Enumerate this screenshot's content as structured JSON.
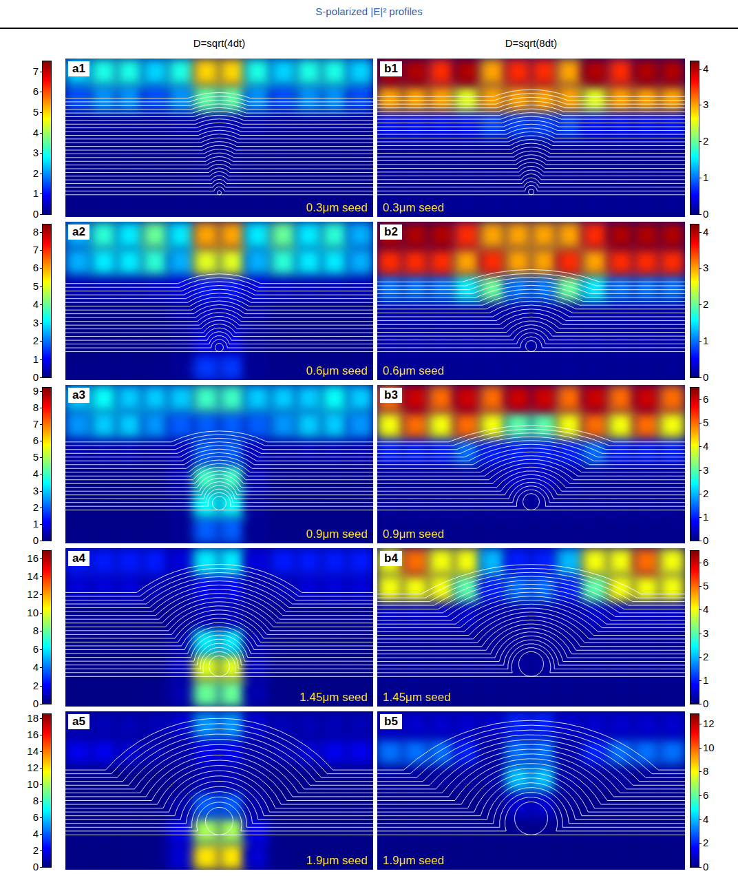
{
  "title": "S-polarized |E|² profiles",
  "column_titles": [
    "D=sqrt(4dt)",
    "D=sqrt(8dt)"
  ],
  "chart_data": [
    {
      "type": "heatmap",
      "panel": "a1",
      "annotation": "0.3μm seed",
      "tick_labels": false,
      "colorbar_range": [
        0,
        7.5
      ],
      "colorbar_ticks": [
        0,
        1,
        2,
        3,
        4,
        5,
        6,
        7
      ],
      "cells": [
        [
          2.5,
          3,
          3,
          2.5,
          3,
          5,
          5,
          3,
          2.5,
          3,
          3,
          2.5
        ],
        [
          1.5,
          2,
          2,
          1.5,
          2,
          3.5,
          3.5,
          2,
          1.5,
          2,
          2,
          1.5
        ],
        [
          0.2,
          0.2,
          0.2,
          0.2,
          0.3,
          0.4,
          0.4,
          0.3,
          0.2,
          0.2,
          0.2,
          0.2
        ],
        [
          0.1,
          0.1,
          0.1,
          0.1,
          0.1,
          0.2,
          0.2,
          0.1,
          0.1,
          0.1,
          0.1,
          0.1
        ],
        [
          0.1,
          0.1,
          0.1,
          0.1,
          0.1,
          0.2,
          0.2,
          0.1,
          0.1,
          0.1,
          0.1,
          0.1
        ],
        [
          0.1,
          0.1,
          0.1,
          0.1,
          0.1,
          0.1,
          0.1,
          0.1,
          0.1,
          0.1,
          0.1,
          0.1
        ]
      ]
    },
    {
      "type": "heatmap",
      "panel": "a2",
      "annotation": "0.6μm seed",
      "tick_labels": false,
      "colorbar_range": [
        0,
        8.4
      ],
      "colorbar_ticks": [
        0,
        1,
        2,
        3,
        4,
        5,
        6,
        7,
        8
      ],
      "cells": [
        [
          2.5,
          3.5,
          3,
          4,
          3,
          6,
          6,
          3,
          4,
          3,
          3.5,
          2.5
        ],
        [
          2.5,
          3,
          3,
          3.5,
          2.5,
          5,
          5,
          2.5,
          3.5,
          3,
          3,
          2.5
        ],
        [
          0.5,
          0.5,
          0.5,
          0.6,
          0.8,
          1.2,
          1.2,
          0.8,
          0.6,
          0.5,
          0.5,
          0.5
        ],
        [
          0.1,
          0.1,
          0.1,
          0.1,
          0.3,
          0.6,
          0.6,
          0.3,
          0.1,
          0.1,
          0.1,
          0.1
        ],
        [
          0.1,
          0.1,
          0.1,
          0.1,
          0.2,
          0.8,
          0.8,
          0.2,
          0.1,
          0.1,
          0.1,
          0.1
        ],
        [
          0.1,
          0.1,
          0.1,
          0.1,
          0.2,
          1.5,
          1.5,
          0.2,
          0.1,
          0.1,
          0.1,
          0.1
        ]
      ]
    },
    {
      "type": "heatmap",
      "panel": "a3",
      "annotation": "0.9μm seed",
      "tick_labels": false,
      "colorbar_range": [
        0,
        9.2
      ],
      "colorbar_ticks": [
        0,
        1,
        2,
        3,
        4,
        5,
        6,
        7,
        8,
        9
      ],
      "cells": [
        [
          3,
          3.5,
          3,
          3,
          3,
          4,
          4,
          3,
          3,
          3,
          3.5,
          3
        ],
        [
          2.5,
          3,
          3,
          2.5,
          2,
          2,
          2,
          2,
          2.5,
          3,
          3,
          2.5
        ],
        [
          0.5,
          0.5,
          0.5,
          0.4,
          0.6,
          2,
          2,
          0.6,
          0.4,
          0.5,
          0.5,
          0.5
        ],
        [
          0.1,
          0.1,
          0.1,
          0.1,
          0.5,
          4,
          4,
          0.5,
          0.1,
          0.1,
          0.1,
          0.1
        ],
        [
          0.1,
          0.1,
          0.1,
          0.1,
          0.3,
          3.5,
          3.5,
          0.3,
          0.1,
          0.1,
          0.1,
          0.1
        ],
        [
          0.1,
          0.1,
          0.1,
          0.1,
          0.2,
          2,
          2,
          0.2,
          0.1,
          0.1,
          0.1,
          0.1
        ]
      ]
    },
    {
      "type": "heatmap",
      "panel": "a4",
      "annotation": "1.45μm seed",
      "tick_labels": false,
      "colorbar_range": [
        0,
        16.8
      ],
      "colorbar_ticks": [
        0,
        2,
        4,
        6,
        8,
        10,
        12,
        14,
        16
      ],
      "cells": [
        [
          2.5,
          2.5,
          2.5,
          2.5,
          1.5,
          6,
          6,
          1.5,
          2.5,
          2.5,
          2.5,
          2.5
        ],
        [
          1.5,
          1.5,
          1.5,
          1,
          0.8,
          2,
          2,
          0.8,
          1,
          1.5,
          1.5,
          1.5
        ],
        [
          0.4,
          0.4,
          0.4,
          0.4,
          0.5,
          1,
          1,
          0.5,
          0.4,
          0.4,
          0.4,
          0.4
        ],
        [
          0.2,
          0.2,
          0.2,
          0.2,
          0.8,
          6,
          6,
          0.8,
          0.2,
          0.2,
          0.2,
          0.2
        ],
        [
          0.2,
          0.2,
          0.2,
          0.2,
          1,
          10,
          10,
          1,
          0.2,
          0.2,
          0.2,
          0.2
        ],
        [
          0.1,
          0.1,
          0.1,
          0.2,
          0.8,
          8,
          8,
          0.8,
          0.2,
          0.1,
          0.1,
          0.1
        ]
      ]
    },
    {
      "type": "heatmap",
      "panel": "a5",
      "annotation": "1.9μm seed",
      "tick_labels": false,
      "colorbar_range": [
        0,
        18.5
      ],
      "colorbar_ticks": [
        0,
        2,
        4,
        6,
        8,
        10,
        12,
        14,
        16,
        18
      ],
      "cells": [
        [
          1,
          1,
          1,
          1,
          1.5,
          5,
          5,
          1.5,
          1,
          1,
          1,
          1
        ],
        [
          2,
          2,
          1.5,
          1,
          0.8,
          2,
          2,
          0.8,
          1,
          1.5,
          2,
          2
        ],
        [
          0.3,
          0.3,
          0.3,
          0.3,
          0.5,
          1,
          1,
          0.5,
          0.3,
          0.3,
          0.3,
          0.3
        ],
        [
          0.2,
          0.2,
          0.2,
          0.2,
          0.8,
          4,
          4,
          0.8,
          0.2,
          0.2,
          0.2,
          0.2
        ],
        [
          0.2,
          0.2,
          0.2,
          0.2,
          2,
          10,
          10,
          2,
          0.2,
          0.2,
          0.2,
          0.2
        ],
        [
          0.1,
          0.1,
          0.1,
          0.2,
          1.5,
          12,
          12,
          1.5,
          0.2,
          0.1,
          0.1,
          0.1
        ]
      ]
    },
    {
      "type": "heatmap",
      "panel": "b1",
      "annotation": "0.3μm seed",
      "tick_labels": false,
      "colorbar_range": [
        0,
        4.2
      ],
      "colorbar_ticks": [
        0,
        1,
        2,
        3,
        4
      ],
      "cells": [
        [
          4,
          4,
          3.5,
          4,
          3,
          3.5,
          3.5,
          3,
          4,
          3.5,
          4,
          4
        ],
        [
          3,
          3,
          3,
          2.5,
          3,
          3,
          3,
          3,
          2.5,
          3,
          3,
          3
        ],
        [
          0.6,
          0.6,
          0.6,
          0.6,
          0.8,
          0.8,
          0.8,
          0.8,
          0.6,
          0.6,
          0.6,
          0.6
        ],
        [
          0.1,
          0.1,
          0.1,
          0.1,
          0.1,
          0.1,
          0.1,
          0.1,
          0.1,
          0.1,
          0.1,
          0.1
        ],
        [
          0.1,
          0.1,
          0.1,
          0.1,
          0.1,
          0.1,
          0.1,
          0.1,
          0.1,
          0.1,
          0.1,
          0.1
        ],
        [
          0.1,
          0.1,
          0.1,
          0.1,
          0.1,
          0.1,
          0.1,
          0.1,
          0.1,
          0.1,
          0.1,
          0.1
        ]
      ]
    },
    {
      "type": "heatmap",
      "panel": "b2",
      "annotation": "0.6μm seed",
      "tick_labels": false,
      "colorbar_range": [
        0,
        4.2
      ],
      "colorbar_ticks": [
        0,
        1,
        2,
        3,
        4
      ],
      "cells": [
        [
          4,
          4,
          4,
          3.5,
          3,
          3,
          3,
          3,
          3.5,
          4,
          4,
          4
        ],
        [
          3.5,
          3.5,
          3.5,
          3,
          3.5,
          3,
          3,
          3.5,
          3,
          3.5,
          3.5,
          3.5
        ],
        [
          1,
          1,
          1,
          1.5,
          2,
          1,
          1,
          2,
          1.5,
          1,
          1,
          1
        ],
        [
          0.2,
          0.2,
          0.2,
          0.2,
          0.2,
          0.2,
          0.2,
          0.2,
          0.2,
          0.2,
          0.2,
          0.2
        ],
        [
          0.2,
          0.2,
          0.2,
          0.2,
          0.2,
          0.2,
          0.2,
          0.2,
          0.2,
          0.2,
          0.2,
          0.2
        ],
        [
          0.1,
          0.1,
          0.1,
          0.1,
          0.1,
          0.1,
          0.1,
          0.1,
          0.1,
          0.1,
          0.1,
          0.1
        ]
      ]
    },
    {
      "type": "heatmap",
      "panel": "b3",
      "annotation": "0.9μm seed",
      "tick_labels": false,
      "colorbar_range": [
        0,
        6.5
      ],
      "colorbar_ticks": [
        0,
        1,
        2,
        3,
        4,
        5,
        6
      ],
      "cells": [
        [
          5,
          6,
          5,
          6,
          5,
          6,
          6,
          5,
          6,
          5,
          6,
          5
        ],
        [
          4,
          5,
          4,
          5,
          4,
          3,
          3,
          4,
          5,
          4,
          5,
          4
        ],
        [
          1,
          1,
          1,
          1.5,
          1,
          1,
          1,
          1,
          1.5,
          1,
          1,
          1
        ],
        [
          0.2,
          0.2,
          0.2,
          0.2,
          0.3,
          0.5,
          0.5,
          0.3,
          0.2,
          0.2,
          0.2,
          0.2
        ],
        [
          0.2,
          0.2,
          0.2,
          0.2,
          0.2,
          0.2,
          0.2,
          0.2,
          0.2,
          0.2,
          0.2,
          0.2
        ],
        [
          0.1,
          0.1,
          0.1,
          0.1,
          0.1,
          0.1,
          0.1,
          0.1,
          0.1,
          0.1,
          0.1,
          0.1
        ]
      ]
    },
    {
      "type": "heatmap",
      "panel": "b4",
      "annotation": "1.45μm seed",
      "tick_labels": false,
      "colorbar_range": [
        0,
        6.5
      ],
      "colorbar_ticks": [
        0,
        1,
        2,
        3,
        4,
        5,
        6
      ],
      "cells": [
        [
          4,
          5,
          4,
          4,
          2,
          1,
          1,
          2,
          4,
          4,
          5,
          4
        ],
        [
          4,
          4,
          4,
          3,
          1,
          1.5,
          1.5,
          1,
          3,
          4,
          4,
          4
        ],
        [
          0.5,
          0.5,
          0.5,
          0.5,
          0.3,
          0.3,
          0.3,
          0.3,
          0.5,
          0.5,
          0.5,
          0.5
        ],
        [
          0.2,
          0.2,
          0.2,
          0.2,
          0.2,
          0.2,
          0.2,
          0.2,
          0.2,
          0.2,
          0.2,
          0.2
        ],
        [
          0.2,
          0.2,
          0.2,
          0.2,
          0.2,
          0.2,
          0.2,
          0.2,
          0.2,
          0.2,
          0.2,
          0.2
        ],
        [
          0.1,
          0.1,
          0.1,
          0.1,
          0.1,
          0.1,
          0.1,
          0.1,
          0.1,
          0.1,
          0.1,
          0.1
        ]
      ]
    },
    {
      "type": "heatmap",
      "panel": "b5",
      "annotation": "1.9μm seed",
      "tick_labels": false,
      "colorbar_range": [
        0,
        12.8
      ],
      "colorbar_ticks": [
        0,
        2,
        4,
        6,
        8,
        10,
        12
      ],
      "cells": [
        [
          1,
          1,
          1,
          1,
          1,
          2,
          2,
          1,
          1,
          1,
          1,
          1
        ],
        [
          3,
          3,
          3,
          2,
          0.5,
          3,
          3,
          0.5,
          2,
          3,
          3,
          3
        ],
        [
          0.4,
          0.4,
          0.4,
          0.4,
          0.5,
          4,
          4,
          0.5,
          0.4,
          0.4,
          0.4,
          0.4
        ],
        [
          0.2,
          0.2,
          0.2,
          0.2,
          0.3,
          1,
          1,
          0.3,
          0.2,
          0.2,
          0.2,
          0.2
        ],
        [
          0.2,
          0.2,
          0.2,
          0.2,
          0.2,
          0.2,
          0.2,
          0.2,
          0.2,
          0.2,
          0.2,
          0.2
        ],
        [
          0.1,
          0.1,
          0.1,
          0.1,
          0.1,
          0.1,
          0.1,
          0.1,
          0.1,
          0.1,
          0.1,
          0.1
        ]
      ]
    }
  ]
}
